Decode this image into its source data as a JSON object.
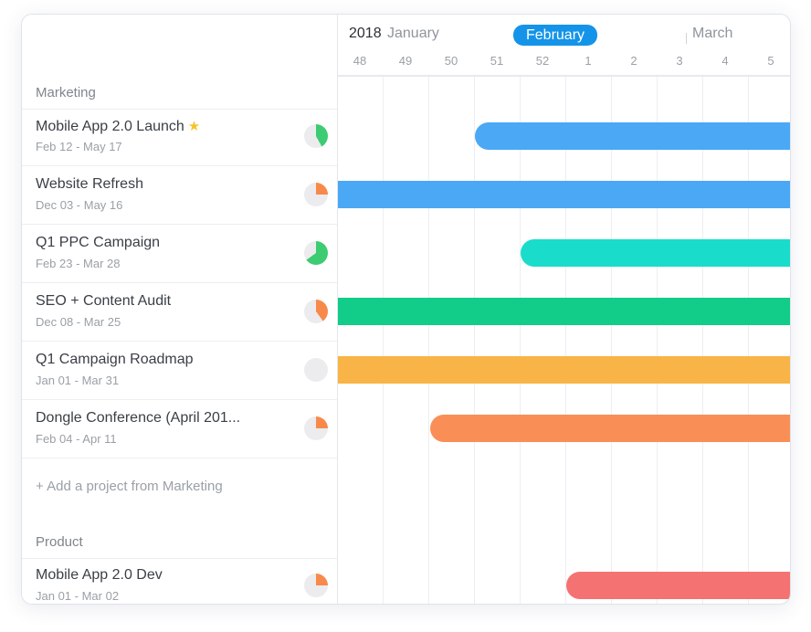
{
  "timeline": {
    "year": "2018",
    "months": [
      {
        "label": "January",
        "active": false
      },
      {
        "label": "February",
        "active": true
      },
      {
        "label": "March",
        "active": false
      }
    ],
    "weeks": [
      "48",
      "49",
      "50",
      "51",
      "52",
      "1",
      "2",
      "3",
      "4",
      "5"
    ]
  },
  "sections": [
    {
      "name": "Marketing",
      "projects": [
        {
          "title": "Mobile App 2.0 Launch",
          "starred": true,
          "dates": "Feb 12 - May 17",
          "progress": 0.42,
          "progress_color": "#3dcc71",
          "bar_color": "#4aa8f5"
        },
        {
          "title": "Website Refresh",
          "starred": false,
          "dates": "Dec 03 - May 16",
          "progress": 0.25,
          "progress_color": "#f78a4b",
          "bar_color": "#4aa8f5"
        },
        {
          "title": "Q1 PPC Campaign",
          "starred": false,
          "dates": "Feb 23 - Mar 28",
          "progress": 0.65,
          "progress_color": "#3dcc71",
          "bar_color": "#1adcca"
        },
        {
          "title": "SEO + Content Audit",
          "starred": false,
          "dates": "Dec 08 - Mar 25",
          "progress": 0.4,
          "progress_color": "#f78a4b",
          "bar_color": "#12cc89"
        },
        {
          "title": "Q1 Campaign Roadmap",
          "starred": false,
          "dates": "Jan 01 - Mar 31",
          "progress": 0,
          "progress_color": "#ececee",
          "bar_color": "#f8b446"
        },
        {
          "title": "Dongle Conference (April 201...",
          "starred": false,
          "dates": "Feb 04 - Apr 11",
          "progress": 0.25,
          "progress_color": "#f78a4b",
          "bar_color": "#f98f57"
        }
      ],
      "add_label": "+ Add a project from Marketing"
    },
    {
      "name": "Product",
      "projects": [
        {
          "title": "Mobile App 2.0 Dev",
          "starred": false,
          "dates": "Jan 01 - Mar 02",
          "progress": 0.25,
          "progress_color": "#f78a4b",
          "bar_color": "#f57272"
        }
      ]
    }
  ]
}
